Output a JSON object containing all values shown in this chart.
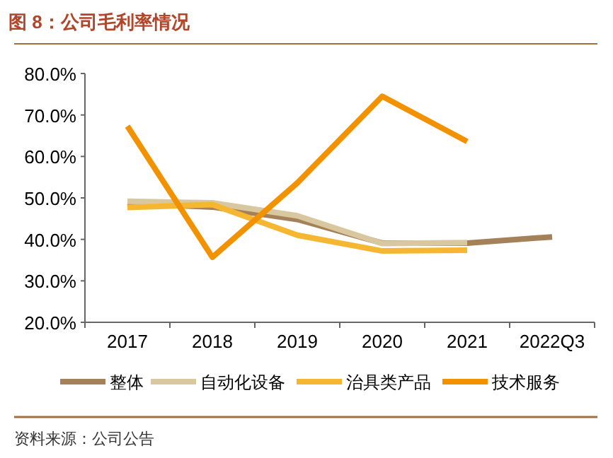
{
  "chart_data": {
    "type": "line",
    "title": "图 8：公司毛利率情况",
    "categories": [
      "2017",
      "2018",
      "2019",
      "2020",
      "2021",
      "2022Q3"
    ],
    "series": [
      {
        "name": "整体",
        "color": "#a5815a",
        "values": [
          48.7,
          47.8,
          44.8,
          39.1,
          39.1,
          40.6
        ]
      },
      {
        "name": "自动化设备",
        "color": "#d9c7a0",
        "values": [
          49.2,
          48.8,
          45.7,
          39.0,
          39.2,
          null
        ]
      },
      {
        "name": "治具类产品",
        "color": "#f5b731",
        "values": [
          47.7,
          48.4,
          41.0,
          37.2,
          37.4,
          null
        ]
      },
      {
        "name": "技术服务",
        "color": "#f39200",
        "values": [
          67.3,
          35.7,
          53.6,
          74.5,
          63.6,
          null
        ]
      }
    ],
    "ylim": [
      20,
      80
    ],
    "yticks": [
      {
        "value": 20,
        "label": "20.0%"
      },
      {
        "value": 30,
        "label": "30.0%"
      },
      {
        "value": 40,
        "label": "40.0%"
      },
      {
        "value": 50,
        "label": "50.0%"
      },
      {
        "value": 60,
        "label": "60.0%"
      },
      {
        "value": 70,
        "label": "70.0%"
      },
      {
        "value": 80,
        "label": "80.0%"
      }
    ],
    "grid": false,
    "legend": "bottom",
    "line_style": "solid",
    "marker": "none",
    "annotations": [
      "资料来源：公司公告"
    ]
  }
}
